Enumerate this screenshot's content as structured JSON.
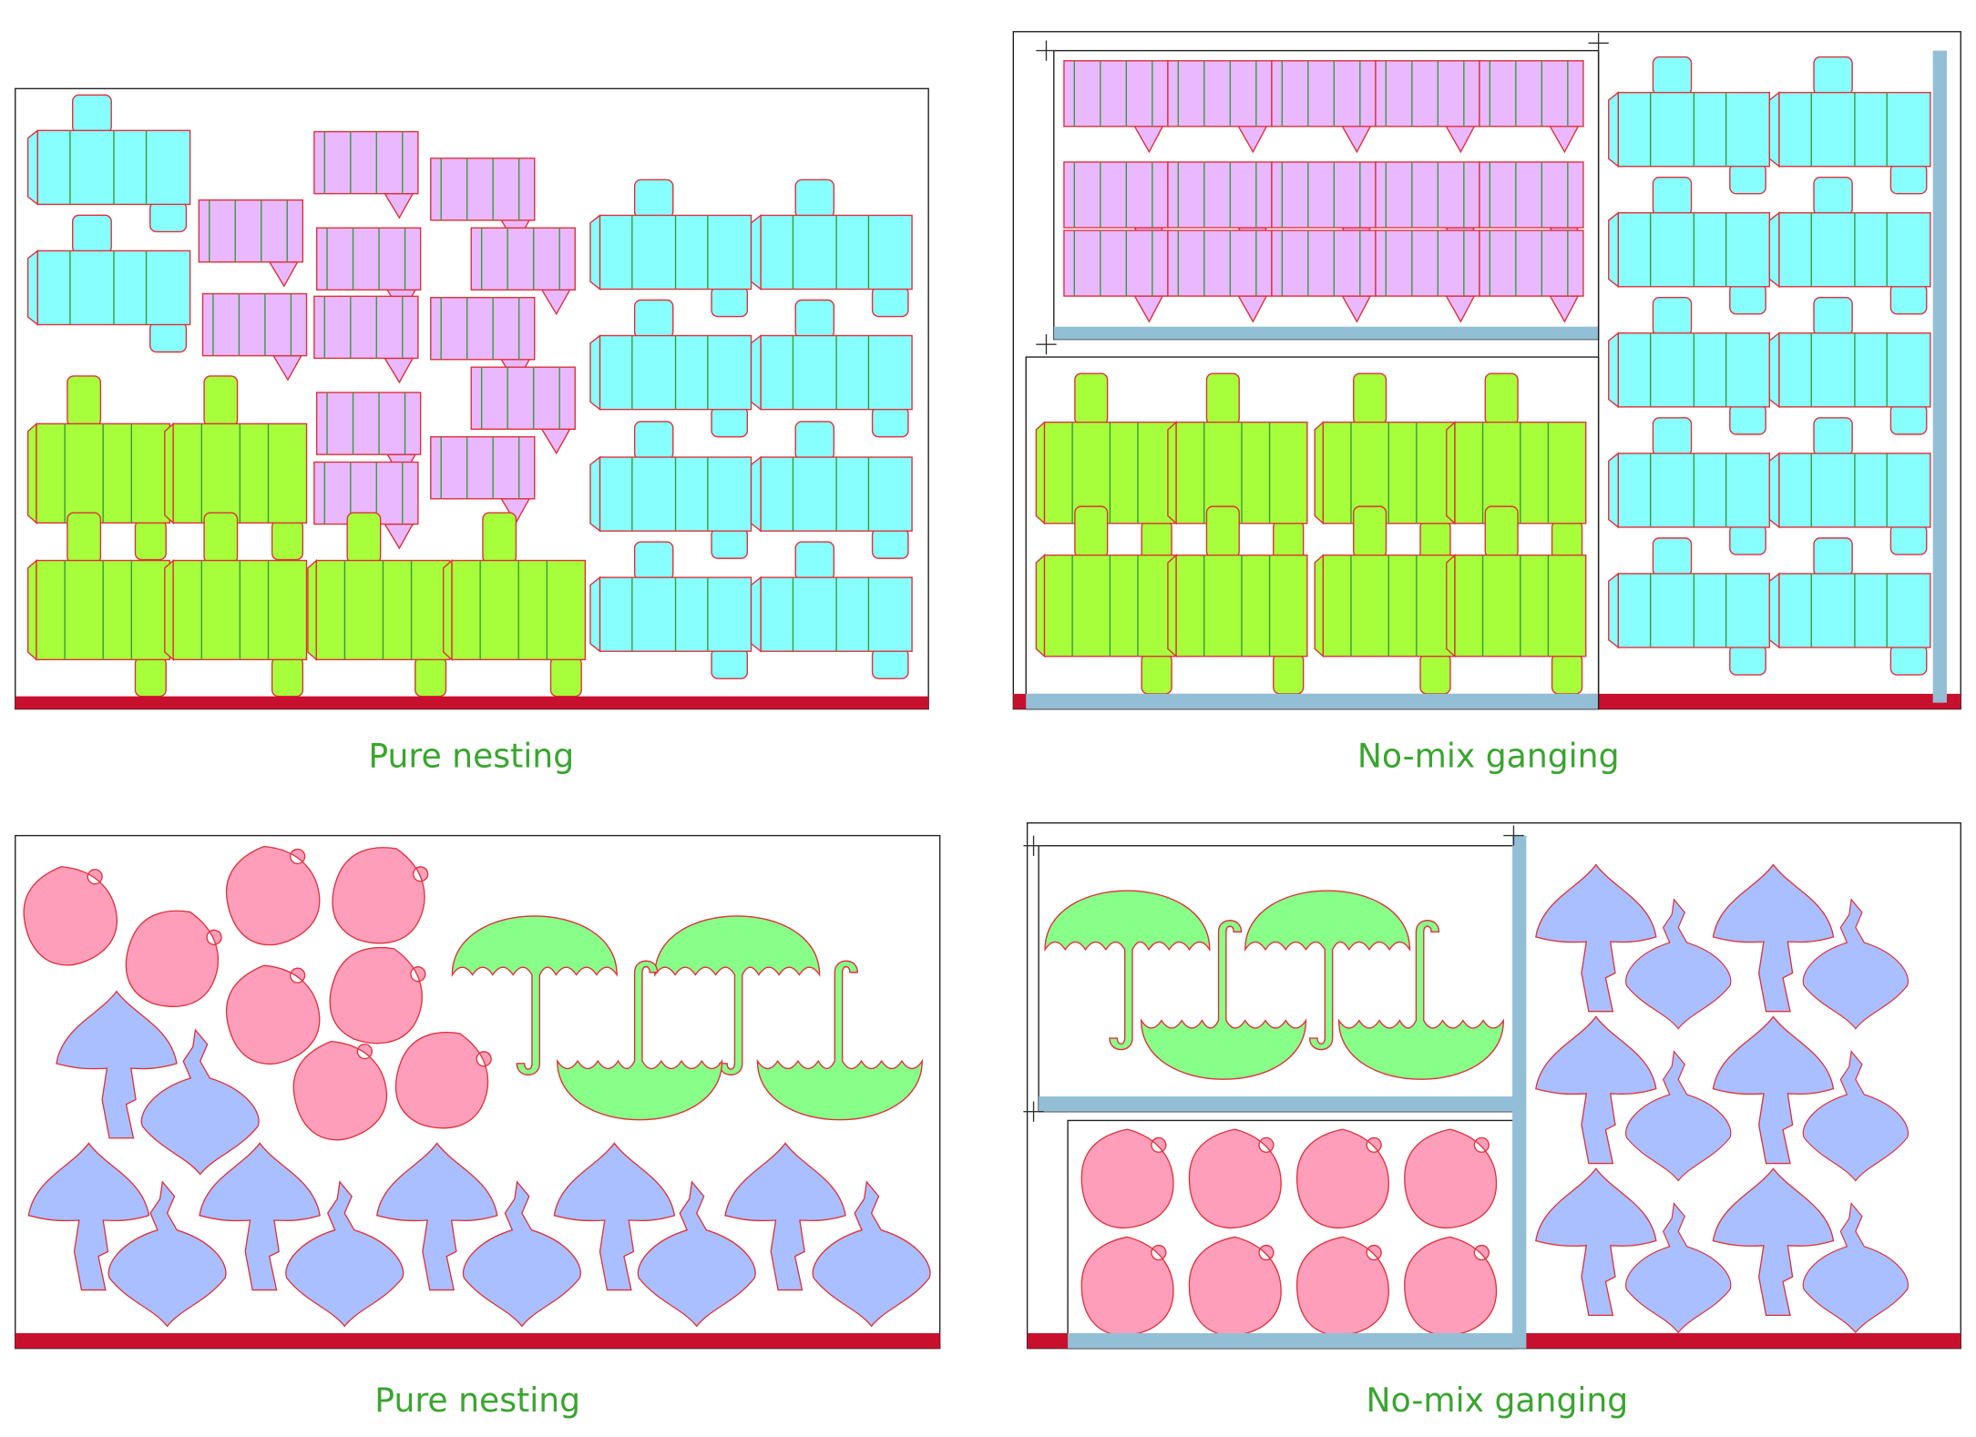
{
  "panels": [
    {
      "caption": "Pure nesting"
    },
    {
      "caption": "No-mix ganging"
    },
    {
      "caption": "Pure nesting"
    },
    {
      "caption": "No-mix ganging"
    }
  ]
}
